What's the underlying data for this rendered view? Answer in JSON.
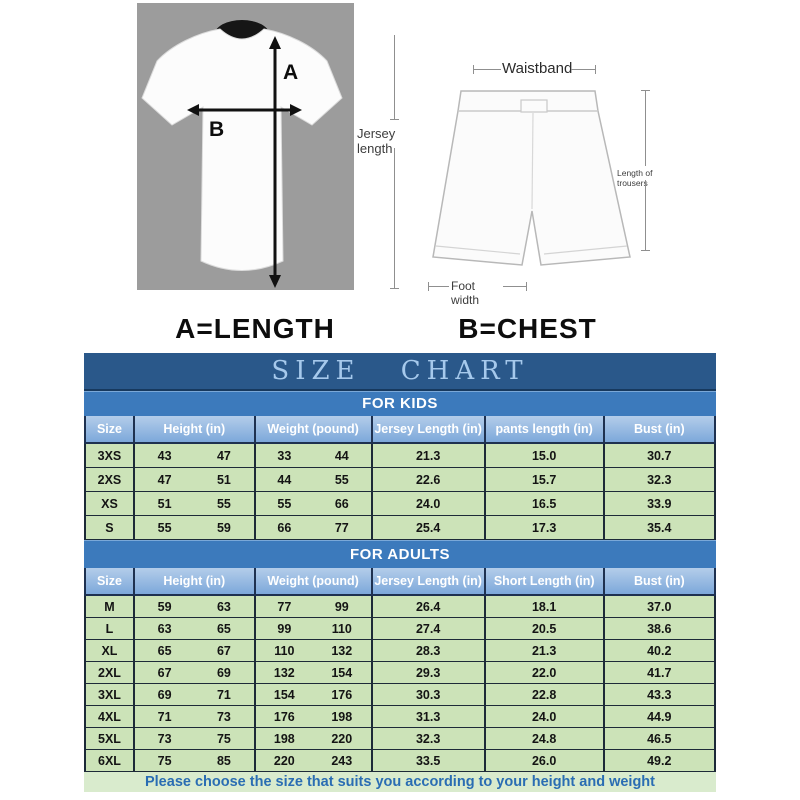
{
  "diagram": {
    "jersey": {
      "dim_a_label": "A",
      "dim_b_label": "B",
      "length_label": "Jersey length"
    },
    "shorts": {
      "waistband_label": "Waistband",
      "trouser_length_label": "Length of trousers",
      "foot_width_label": "Foot width"
    }
  },
  "legend": {
    "a_equals": "A=LENGTH",
    "b_equals": "B=CHEST"
  },
  "size_chart": {
    "title": "SIZE  CHART",
    "footer_note": "Please choose the size that suits you according to your height and weight"
  },
  "chart_data": [
    {
      "type": "table",
      "section": "FOR KIDS",
      "headers": [
        "Size",
        "Height  (in)",
        "Weight  (pound)",
        "Jersey Length  (in)",
        "pants length  (in)",
        "Bust  (in)"
      ],
      "rows": [
        [
          "3XS",
          [
            "43",
            "47"
          ],
          [
            "33",
            "44"
          ],
          "21.3",
          "15.0",
          "30.7"
        ],
        [
          "2XS",
          [
            "47",
            "51"
          ],
          [
            "44",
            "55"
          ],
          "22.6",
          "15.7",
          "32.3"
        ],
        [
          "XS",
          [
            "51",
            "55"
          ],
          [
            "55",
            "66"
          ],
          "24.0",
          "16.5",
          "33.9"
        ],
        [
          "S",
          [
            "55",
            "59"
          ],
          [
            "66",
            "77"
          ],
          "25.4",
          "17.3",
          "35.4"
        ]
      ]
    },
    {
      "type": "table",
      "section": "FOR ADULTS",
      "headers": [
        "Size",
        "Height  (in)",
        "Weight  (pound)",
        "Jersey Length  (in)",
        "Short Length  (in)",
        "Bust  (in)"
      ],
      "rows": [
        [
          "M",
          [
            "59",
            "63"
          ],
          [
            "77",
            "99"
          ],
          "26.4",
          "18.1",
          "37.0"
        ],
        [
          "L",
          [
            "63",
            "65"
          ],
          [
            "99",
            "110"
          ],
          "27.4",
          "20.5",
          "38.6"
        ],
        [
          "XL",
          [
            "65",
            "67"
          ],
          [
            "110",
            "132"
          ],
          "28.3",
          "21.3",
          "40.2"
        ],
        [
          "2XL",
          [
            "67",
            "69"
          ],
          [
            "132",
            "154"
          ],
          "29.3",
          "22.0",
          "41.7"
        ],
        [
          "3XL",
          [
            "69",
            "71"
          ],
          [
            "154",
            "176"
          ],
          "30.3",
          "22.8",
          "43.3"
        ],
        [
          "4XL",
          [
            "71",
            "73"
          ],
          [
            "176",
            "198"
          ],
          "31.3",
          "24.0",
          "44.9"
        ],
        [
          "5XL",
          [
            "73",
            "75"
          ],
          [
            "198",
            "220"
          ],
          "32.3",
          "24.8",
          "46.5"
        ],
        [
          "6XL",
          [
            "75",
            "85"
          ],
          [
            "220",
            "243"
          ],
          "33.5",
          "26.0",
          "49.2"
        ]
      ]
    }
  ],
  "colors": {
    "title_bar": "#2a588a",
    "title_text": "#a6c9ec",
    "section_bar": "#3c7abc",
    "header_top": "#b3cdea",
    "header_bottom": "#7da8da",
    "row_bg": "#cce3b8",
    "footer_bg": "#d9ebcd",
    "footer_text": "#2a6db3",
    "photo_bg": "#9c9c9c"
  }
}
